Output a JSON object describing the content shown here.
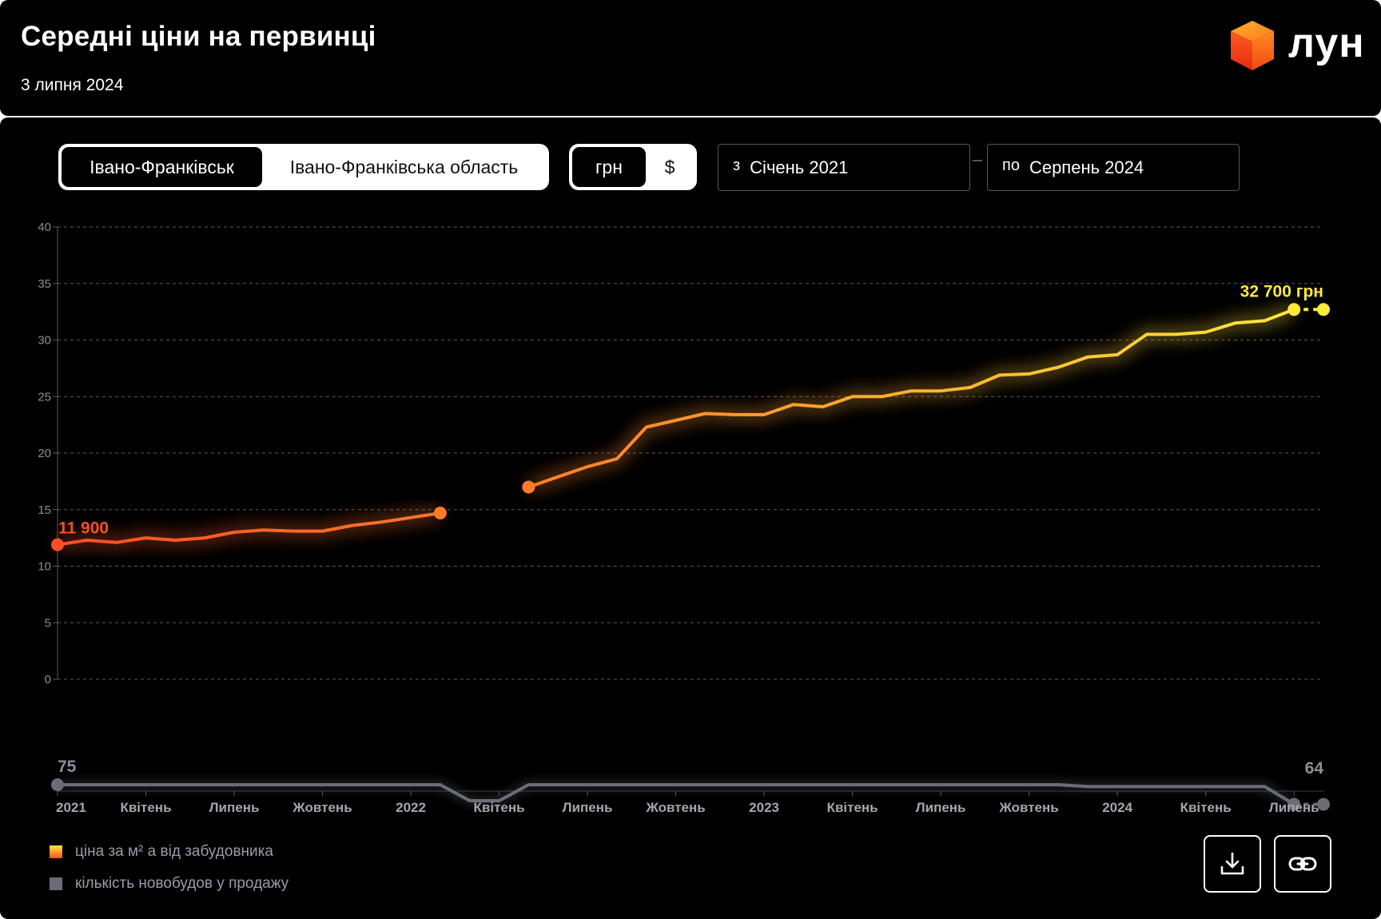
{
  "header": {
    "title": "Середні ціни на первинці",
    "date": "3 липня 2024",
    "logo_text": "лун"
  },
  "controls": {
    "location_options": [
      "Івано-Франківськ",
      "Івано-Франківська область"
    ],
    "location_selected": "Івано-Франківськ",
    "currency_options": [
      "грн",
      "$"
    ],
    "currency_selected": "грн",
    "date_from_prefix": "з",
    "date_from": "Січень 2021",
    "date_to_prefix": "по",
    "date_to": "Серпень 2024"
  },
  "legend": {
    "price_label": "ціна за м² а від забудовника",
    "count_label": "кількість новобудов у продажу"
  },
  "colors": {
    "background": "#000000",
    "price_start": "#ff4d26",
    "price_end": "#ffe93b",
    "count": "#6b6c76",
    "grid": "#5a5a60"
  },
  "chart_data": {
    "type": "line",
    "ylim": [
      0,
      40
    ],
    "yticks": [
      "0",
      "5",
      "10",
      "15",
      "20",
      "25",
      "30",
      "35",
      "40"
    ],
    "grid": true,
    "x_tick_labels": [
      "2021",
      "Квітень",
      "Липень",
      "Жовтень",
      "2022",
      "Квітень",
      "Липень",
      "Жовтень",
      "2023",
      "Квітень",
      "Липень",
      "Жовтень",
      "2024",
      "Квітень",
      "Липень"
    ],
    "x": [
      "2021-01",
      "2021-02",
      "2021-03",
      "2021-04",
      "2021-05",
      "2021-06",
      "2021-07",
      "2021-08",
      "2021-09",
      "2021-10",
      "2021-11",
      "2021-12",
      "2022-01",
      "2022-02",
      "2022-03",
      "2022-04",
      "2022-05",
      "2022-06",
      "2022-07",
      "2022-08",
      "2022-09",
      "2022-10",
      "2022-11",
      "2022-12",
      "2023-01",
      "2023-02",
      "2023-03",
      "2023-04",
      "2023-05",
      "2023-06",
      "2023-07",
      "2023-08",
      "2023-09",
      "2023-10",
      "2023-11",
      "2023-12",
      "2024-01",
      "2024-02",
      "2024-03",
      "2024-04",
      "2024-05",
      "2024-06",
      "2024-07",
      "2024-08"
    ],
    "series": [
      {
        "name": "ціна за м² а від забудовника",
        "values": [
          11.9,
          12.3,
          12.1,
          12.5,
          12.3,
          12.5,
          13.0,
          13.2,
          13.1,
          13.1,
          13.6,
          13.9,
          14.3,
          14.7,
          null,
          null,
          17.0,
          17.9,
          18.8,
          19.5,
          22.3,
          22.9,
          23.5,
          23.4,
          23.4,
          24.3,
          24.1,
          25.0,
          25.0,
          25.5,
          25.5,
          25.8,
          26.9,
          27.0,
          27.6,
          28.5,
          28.7,
          30.5,
          30.5,
          30.7,
          31.5,
          31.7,
          32.7,
          32.7
        ],
        "forecast_last": true
      },
      {
        "name": "кількість новобудов у продажу",
        "values": [
          75,
          75,
          75,
          75,
          75,
          75,
          75,
          75,
          75,
          75,
          75,
          75,
          75,
          75,
          66,
          66,
          75,
          75,
          75,
          75,
          75,
          75,
          75,
          75,
          75,
          75,
          75,
          75,
          75,
          75,
          75,
          75,
          75,
          75,
          75,
          74,
          74,
          74,
          74,
          74,
          74,
          74,
          64,
          64
        ],
        "forecast_last": true
      }
    ],
    "annotations": {
      "price_first": "11 900",
      "price_last": "32 700 грн",
      "count_first": "75",
      "count_last": "64"
    }
  }
}
